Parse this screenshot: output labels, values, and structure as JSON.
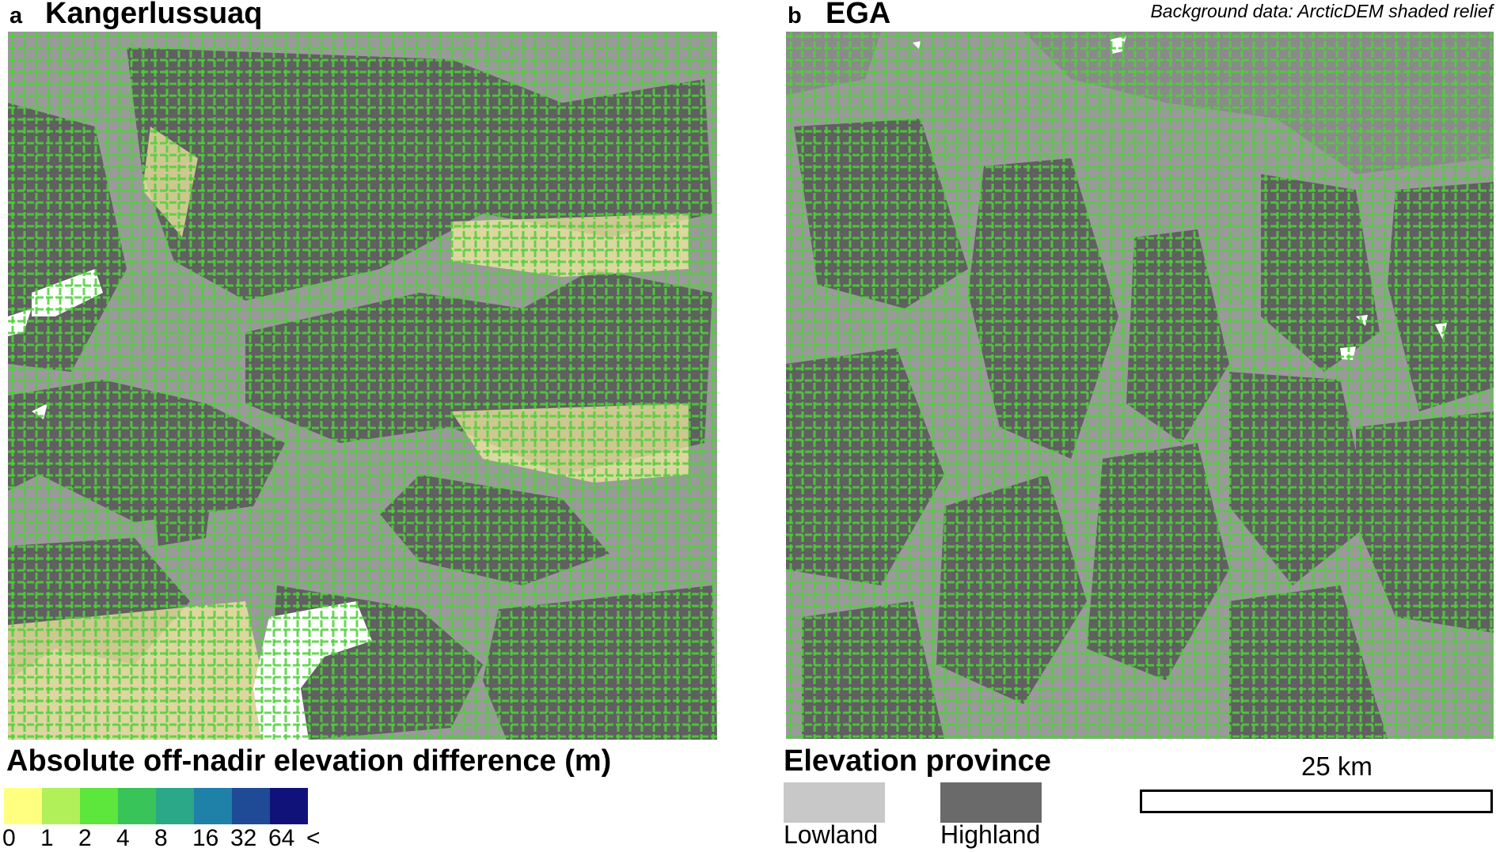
{
  "panel_a": {
    "letter": "a",
    "title": "Kangerlussuaq"
  },
  "panel_b": {
    "letter": "b",
    "title": "EGA"
  },
  "credit": "Background data: ArcticDEM shaded relief",
  "difference_legend": {
    "title": "Absolute off-nadir elevation difference (m)",
    "classes": [
      {
        "color": "#ffff80"
      },
      {
        "color": "#b2f05a"
      },
      {
        "color": "#5de63c"
      },
      {
        "color": "#39c45a"
      },
      {
        "color": "#2aa888"
      },
      {
        "color": "#1f80a8"
      },
      {
        "color": "#1f4a96"
      },
      {
        "color": "#10127a"
      }
    ],
    "ticks": [
      "0",
      "1",
      "2",
      "4",
      "8",
      "16",
      "32",
      "64",
      "<"
    ]
  },
  "province_legend": {
    "title": "Elevation province",
    "items": [
      {
        "label": "Lowland",
        "color": "#c8c8c8"
      },
      {
        "label": "Highland",
        "color": "#6a6a6a"
      }
    ]
  },
  "scale": {
    "label": "25 km"
  },
  "colors": {
    "lowland_map": "#9a9a9a",
    "highland_map": "#606060",
    "hillshade_high": "#8a8a8a",
    "nodata": "#ffffff"
  }
}
